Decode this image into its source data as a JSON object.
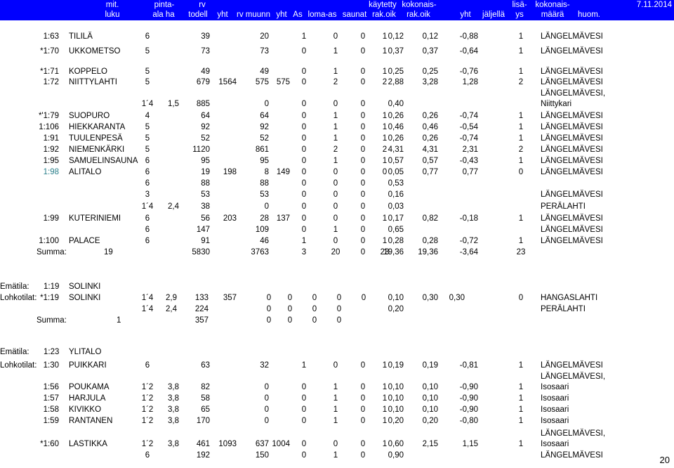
{
  "header": {
    "date": "7.11.2014",
    "line1": [
      "mit.",
      "pinta-",
      "rv",
      "käytetty",
      "kokonais-",
      "lisä-",
      "kokonais-"
    ],
    "line2": [
      "luku",
      "ala ha",
      "todell",
      "yht",
      "rv muunn",
      "yht",
      "As",
      "loma-as",
      "saunat",
      "rak.oik",
      "rak.oik",
      "yht",
      "jäljellä",
      "ys",
      "määrä",
      "huom."
    ]
  },
  "rows": [
    [
      "1:63",
      "TILILÄ",
      "6",
      "",
      "39",
      "",
      "20",
      "",
      "1",
      "0",
      "0",
      "1",
      "0,12",
      "0,12",
      "-0,88",
      "1",
      "LÄNGELMÄVESI"
    ],
    [
      "*1:70",
      "UKKOMETSO",
      "5",
      "",
      "73",
      "",
      "73",
      "",
      "0",
      "1",
      "0",
      "1",
      "0,37",
      "0,37",
      "-0,64",
      "1",
      "LÄNGELMÄVESI"
    ],
    [
      "*1:71",
      "KOPPELO",
      "5",
      "",
      "49",
      "",
      "49",
      "",
      "0",
      "1",
      "0",
      "1",
      "0,25",
      "0,25",
      "-0,76",
      "1",
      "LÄNGELMÄVESI"
    ],
    [
      "1:72",
      "NIITTYLAHTI",
      "5",
      "",
      "679",
      "1564",
      "575",
      "575",
      "0",
      "2",
      "0",
      "2",
      "2,88",
      "3,28",
      "1,28",
      "2",
      "LÄNGELMÄVESI"
    ],
    [
      "",
      "",
      "",
      "",
      "",
      "",
      "",
      "",
      "",
      "",
      "",
      "",
      "",
      "",
      "",
      "",
      "LÄNGELMÄVESI,"
    ],
    [
      "",
      "",
      "1´4",
      "1,5",
      "885",
      "",
      "0",
      "",
      "0",
      "0",
      "0",
      "",
      "0,40",
      "",
      "",
      "",
      "Niittykari"
    ],
    [
      "*'1:79",
      "SUOPURO",
      "4",
      "",
      "64",
      "",
      "64",
      "",
      "0",
      "1",
      "0",
      "1",
      "0,26",
      "0,26",
      "-0,74",
      "1",
      "LÄNGELMÄVESI"
    ],
    [
      "1:106",
      "HIEKKARANTA",
      "5",
      "",
      "92",
      "",
      "92",
      "",
      "0",
      "1",
      "0",
      "1",
      "0,46",
      "0,46",
      "-0,54",
      "1",
      "LÄNGELMÄVESI"
    ],
    [
      "1:91",
      "TUULENPESÄ",
      "5",
      "",
      "52",
      "",
      "52",
      "",
      "0",
      "1",
      "0",
      "1",
      "0,26",
      "0,26",
      "-0,74",
      "1",
      "LÄNGELMÄVESI"
    ],
    [
      "1:92",
      "NIEMENKÄRKI",
      "5",
      "",
      "1120",
      "",
      "861",
      "",
      "0",
      "2",
      "0",
      "2",
      "4,31",
      "4,31",
      "2,31",
      "2",
      "LÄNGELMÄVESI"
    ],
    [
      "1:95",
      "SAMUELINSAUNA",
      "6",
      "",
      "95",
      "",
      "95",
      "",
      "0",
      "1",
      "0",
      "1",
      "0,57",
      "0,57",
      "-0,43",
      "1",
      "LÄNGELMÄVESI"
    ],
    [
      "1:98",
      "ALITALO",
      "6",
      "",
      "19",
      "198",
      "8",
      "149",
      "0",
      "0",
      "0",
      "0",
      "0,05",
      "0,77",
      "0,77",
      "0",
      "LÄNGELMÄVESI"
    ],
    [
      "",
      "",
      "6",
      "",
      "88",
      "",
      "88",
      "",
      "0",
      "0",
      "0",
      "",
      "0,53",
      "",
      "",
      "",
      ""
    ],
    [
      "",
      "",
      "3",
      "",
      "53",
      "",
      "53",
      "",
      "0",
      "0",
      "0",
      "",
      "0,16",
      "",
      "",
      "",
      "LÄNGELMÄVESI"
    ],
    [
      "",
      "",
      "1´4",
      "2,4",
      "38",
      "",
      "0",
      "",
      "0",
      "0",
      "0",
      "",
      "0,03",
      "",
      "",
      "",
      "PERÄLAHTI"
    ],
    [
      "1:99",
      "KUTERINIEMI",
      "6",
      "",
      "56",
      "203",
      "28",
      "137",
      "0",
      "0",
      "0",
      "1",
      "0,17",
      "0,82",
      "-0,18",
      "1",
      "LÄNGELMÄVESI"
    ],
    [
      "",
      "",
      "6",
      "",
      "147",
      "",
      "109",
      "",
      "0",
      "1",
      "0",
      "",
      "0,65",
      "",
      "",
      "",
      "LÄNGELMÄVESI"
    ],
    [
      "1:100",
      "PALACE",
      "6",
      "",
      "91",
      "",
      "46",
      "",
      "1",
      "0",
      "0",
      "1",
      "0,28",
      "0,28",
      "-0,72",
      "1",
      "LÄNGELMÄVESI"
    ],
    [
      "Summa:",
      "19",
      "",
      "",
      "5830",
      "",
      "3763",
      "",
      "3",
      "20",
      "0",
      "23",
      "19,36",
      "19,36",
      "-3,64",
      "23",
      ""
    ]
  ],
  "section2": {
    "emalabel": "Emätila:",
    "ema_id": "1:19",
    "ema_name": "SOLINKI",
    "lohkolabel": "Lohkotilat:",
    "rows": [
      [
        "*1:19",
        "SOLINKI",
        "1´4",
        "2,9",
        "133",
        "357",
        "0",
        "0",
        "0",
        "0",
        "0",
        "0,10",
        "0,30",
        "0,30",
        "0",
        "HANGASLAHTI"
      ],
      [
        "",
        "",
        "1´4",
        "2,4",
        "224",
        "",
        "0",
        "0",
        "0",
        "0",
        "",
        "0,20",
        "",
        "",
        "",
        "PERÄLAHTI"
      ],
      [
        "Summa:",
        "1",
        "",
        "",
        "357",
        "",
        "0",
        "0",
        "0",
        "0",
        "",
        "",
        "",
        "",
        "",
        ""
      ]
    ]
  },
  "section3": {
    "emalabel": "Emätila:",
    "ema_id": "1:23",
    "ema_name": "YLITALO",
    "lohkolabel": "Lohkotilat:",
    "rows": [
      [
        "1:30",
        "PUIKKARI",
        "6",
        "",
        "63",
        "",
        "32",
        "",
        "1",
        "0",
        "0",
        "1",
        "0,19",
        "0,19",
        "-0,81",
        "1",
        "LÄNGELMÄVESI"
      ],
      [
        "",
        "",
        "",
        "",
        "",
        "",
        "",
        "",
        "",
        "",
        "",
        "",
        "",
        "",
        "",
        "",
        "LÄNGELMÄVESI,"
      ],
      [
        "1:56",
        "POUKAMA",
        "1´2",
        "3,8",
        "82",
        "",
        "0",
        "",
        "0",
        "1",
        "0",
        "1",
        "0,10",
        "0,10",
        "-0,90",
        "1",
        "Isosaari"
      ],
      [
        "1:57",
        "HARJULA",
        "1´2",
        "3,8",
        "58",
        "",
        "0",
        "",
        "0",
        "1",
        "0",
        "1",
        "0,10",
        "0,10",
        "-0,90",
        "1",
        "Isosaari"
      ],
      [
        "1:58",
        "KIVIKKO",
        "1´2",
        "3,8",
        "65",
        "",
        "0",
        "",
        "0",
        "1",
        "0",
        "1",
        "0,10",
        "0,10",
        "-0,90",
        "1",
        "Isosaari"
      ],
      [
        "1:59",
        "RANTANEN",
        "1´2",
        "3,8",
        "170",
        "",
        "0",
        "",
        "0",
        "1",
        "0",
        "1",
        "0,20",
        "0,20",
        "-0,80",
        "1",
        "Isosaari"
      ],
      [
        "",
        "",
        "",
        "",
        "",
        "",
        "",
        "",
        "",
        "",
        "",
        "",
        "",
        "",
        "",
        "",
        "LÄNGELMÄVESI,"
      ],
      [
        "*1:60",
        "LASTIKKA",
        "1´2",
        "3,8",
        "461",
        "1093",
        "637",
        "1004",
        "0",
        "0",
        "0",
        "1",
        "0,60",
        "2,15",
        "1,15",
        "1",
        "Isosaari"
      ],
      [
        "",
        "",
        "6",
        "",
        "192",
        "",
        "150",
        "",
        "0",
        "1",
        "0",
        "",
        "0,90",
        "",
        "",
        "",
        "LÄNGELMÄVESI"
      ]
    ]
  },
  "page_number": "20",
  "colors": {
    "header_bg": "#0000ff",
    "header_text": "#ffffff",
    "link_id": "#2a7f8a"
  }
}
